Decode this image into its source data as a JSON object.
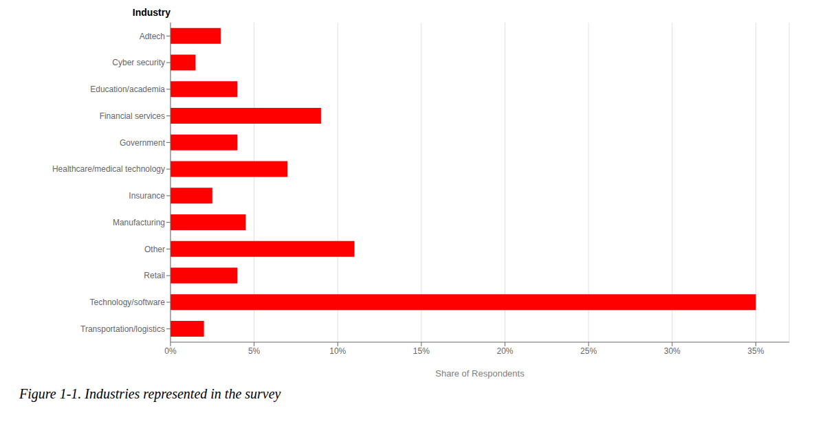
{
  "chart_data": {
    "type": "bar",
    "orientation": "horizontal",
    "categories": [
      "Adtech",
      "Cyber security",
      "Education/academia",
      "Financial services",
      "Government",
      "Healthcare/medical technology",
      "Insurance",
      "Manufacturing",
      "Other",
      "Retail",
      "Technology/software",
      "Transportation/logistics"
    ],
    "values": [
      0.03,
      0.015,
      0.04,
      0.09,
      0.04,
      0.07,
      0.025,
      0.045,
      0.11,
      0.04,
      0.35,
      0.02
    ],
    "color": "#ff0000",
    "xlabel": "Share of Respondents",
    "ylabel": "Industry",
    "caption": "Figure 1-1. Industries represented in the survey",
    "xlim": [
      0,
      0.37
    ],
    "xticks": [
      {
        "value": 0.0,
        "label": "0%"
      },
      {
        "value": 0.05,
        "label": "5%"
      },
      {
        "value": 0.1,
        "label": "10%"
      },
      {
        "value": 0.15,
        "label": "15%"
      },
      {
        "value": 0.2,
        "label": "20%"
      },
      {
        "value": 0.25,
        "label": "25%"
      },
      {
        "value": 0.3,
        "label": "30%"
      },
      {
        "value": 0.35,
        "label": "35%"
      }
    ],
    "grid": true
  }
}
